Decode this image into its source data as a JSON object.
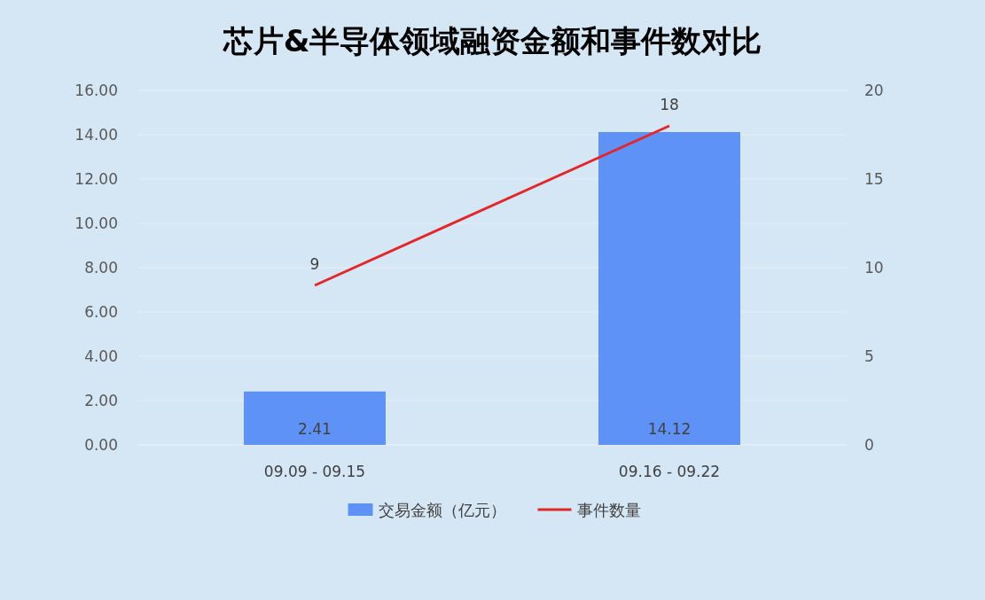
{
  "chart_data": {
    "type": "bar",
    "title": "芯片&半导体领域融资金额和事件数对比",
    "categories": [
      "09.09 - 09.15",
      "09.16 - 09.22"
    ],
    "series": [
      {
        "name": "交易金额（亿元）",
        "color": "#5f92f6",
        "values": [
          2.41,
          14.12
        ]
      },
      {
        "name": "事件数量",
        "type": "line",
        "axis": "y2",
        "color": "#e3262a",
        "values": [
          9,
          18
        ]
      }
    ],
    "ylim": [
      0,
      16
    ],
    "yticks": [
      {
        "value": 0,
        "label": "0.00"
      },
      {
        "value": 2,
        "label": "2.00"
      },
      {
        "value": 4,
        "label": "4.00"
      },
      {
        "value": 6,
        "label": "6.00"
      },
      {
        "value": 8,
        "label": "8.00"
      },
      {
        "value": 10,
        "label": "10.00"
      },
      {
        "value": 12,
        "label": "12.00"
      },
      {
        "value": 14,
        "label": "14.00"
      },
      {
        "value": 16,
        "label": "16.00"
      }
    ],
    "y2lim": [
      0,
      20
    ],
    "y2ticks": [
      0,
      5,
      10,
      15,
      20
    ],
    "grid": "y",
    "legend": "bottom",
    "data_labels": true
  }
}
